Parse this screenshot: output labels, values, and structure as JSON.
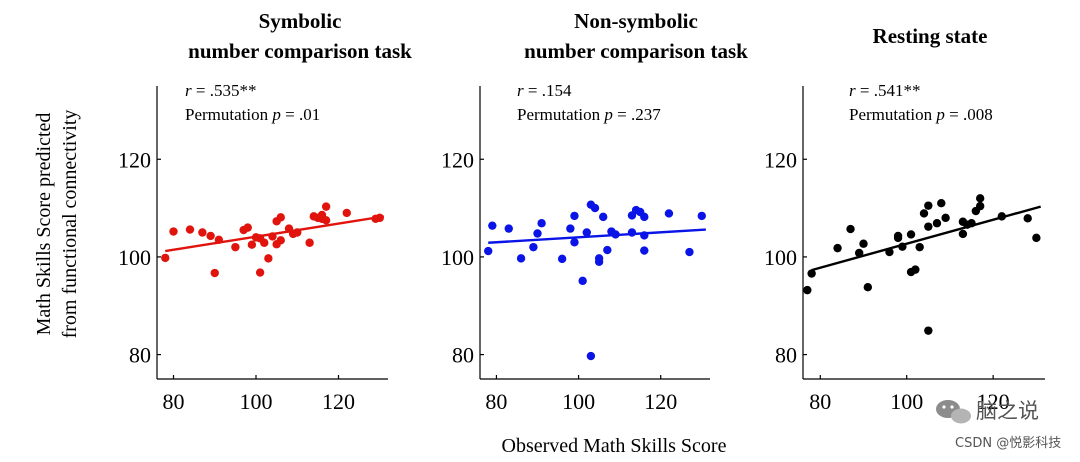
{
  "chart_data": [
    {
      "type": "scatter",
      "title": [
        "Symbolic",
        "number comparison task"
      ],
      "stat_r_italic": "r",
      "stat_r_value": " = .535**",
      "stat_p_prefix": "Permutation ",
      "stat_p_italic": "p",
      "stat_p_value": " = .01",
      "color": "#e0140c",
      "xlim": [
        76,
        132
      ],
      "ylim": [
        75,
        135
      ],
      "xticks": [
        "80",
        "100",
        "120"
      ],
      "yticks": [
        "80",
        "100",
        "120"
      ],
      "fit": {
        "x": [
          78,
          131
        ],
        "y": [
          101.2,
          108.3
        ]
      },
      "points": [
        {
          "x": 78,
          "y": 99.8
        },
        {
          "x": 80,
          "y": 105.2
        },
        {
          "x": 84,
          "y": 105.6
        },
        {
          "x": 87,
          "y": 105.0
        },
        {
          "x": 89,
          "y": 104.3
        },
        {
          "x": 90,
          "y": 96.7
        },
        {
          "x": 91,
          "y": 103.5
        },
        {
          "x": 95,
          "y": 102.0
        },
        {
          "x": 97,
          "y": 105.5
        },
        {
          "x": 98,
          "y": 106.0
        },
        {
          "x": 99,
          "y": 102.5
        },
        {
          "x": 100,
          "y": 104.0
        },
        {
          "x": 101,
          "y": 96.8
        },
        {
          "x": 101,
          "y": 103.8
        },
        {
          "x": 102,
          "y": 102.9
        },
        {
          "x": 103,
          "y": 99.7
        },
        {
          "x": 104,
          "y": 104.2
        },
        {
          "x": 105,
          "y": 102.6
        },
        {
          "x": 105,
          "y": 107.3
        },
        {
          "x": 106,
          "y": 108.1
        },
        {
          "x": 106,
          "y": 103.4
        },
        {
          "x": 108,
          "y": 105.8
        },
        {
          "x": 109,
          "y": 104.7
        },
        {
          "x": 110,
          "y": 105.0
        },
        {
          "x": 113,
          "y": 102.9
        },
        {
          "x": 114,
          "y": 108.3
        },
        {
          "x": 115,
          "y": 108.0
        },
        {
          "x": 116,
          "y": 107.8
        },
        {
          "x": 116,
          "y": 108.6
        },
        {
          "x": 117,
          "y": 110.3
        },
        {
          "x": 117,
          "y": 107.5
        },
        {
          "x": 122,
          "y": 109.0
        },
        {
          "x": 129,
          "y": 107.8
        },
        {
          "x": 130,
          "y": 108.0
        }
      ]
    },
    {
      "type": "scatter",
      "title": [
        "Non-symbolic",
        "number comparison task"
      ],
      "stat_r_italic": "r",
      "stat_r_value": " = .154",
      "stat_p_prefix": "Permutation ",
      "stat_p_italic": "p",
      "stat_p_value": " = .237",
      "color": "#0a14e6",
      "xlim": [
        76,
        132
      ],
      "ylim": [
        75,
        135
      ],
      "xticks": [
        "80",
        "100",
        "120"
      ],
      "yticks": [
        "80",
        "100",
        "120"
      ],
      "fit": {
        "x": [
          78,
          131
        ],
        "y": [
          102.9,
          105.6
        ]
      },
      "points": [
        {
          "x": 78,
          "y": 101.2
        },
        {
          "x": 79,
          "y": 106.4
        },
        {
          "x": 83,
          "y": 105.8
        },
        {
          "x": 86,
          "y": 99.7
        },
        {
          "x": 89,
          "y": 102.0
        },
        {
          "x": 90,
          "y": 104.8
        },
        {
          "x": 91,
          "y": 106.9
        },
        {
          "x": 96,
          "y": 99.6
        },
        {
          "x": 98,
          "y": 105.8
        },
        {
          "x": 99,
          "y": 108.4
        },
        {
          "x": 99,
          "y": 103.0
        },
        {
          "x": 101,
          "y": 95.1
        },
        {
          "x": 102,
          "y": 105.0
        },
        {
          "x": 103,
          "y": 110.7
        },
        {
          "x": 103,
          "y": 79.7
        },
        {
          "x": 104,
          "y": 110.0
        },
        {
          "x": 105,
          "y": 99.7
        },
        {
          "x": 105,
          "y": 99.0
        },
        {
          "x": 106,
          "y": 108.2
        },
        {
          "x": 107,
          "y": 101.4
        },
        {
          "x": 108,
          "y": 105.2
        },
        {
          "x": 109,
          "y": 104.6
        },
        {
          "x": 113,
          "y": 108.5
        },
        {
          "x": 113,
          "y": 105.0
        },
        {
          "x": 114,
          "y": 109.6
        },
        {
          "x": 115,
          "y": 109.2
        },
        {
          "x": 116,
          "y": 101.3
        },
        {
          "x": 116,
          "y": 108.2
        },
        {
          "x": 116,
          "y": 104.4
        },
        {
          "x": 122,
          "y": 108.9
        },
        {
          "x": 127,
          "y": 101.0
        },
        {
          "x": 130,
          "y": 108.4
        }
      ]
    },
    {
      "type": "scatter",
      "title": [
        "Resting state"
      ],
      "stat_r_italic": "r",
      "stat_r_value": " = .541**",
      "stat_p_prefix": "Permutation ",
      "stat_p_italic": "p",
      "stat_p_value": " = .008",
      "color": "#000000",
      "xlim": [
        76,
        132
      ],
      "ylim": [
        75,
        135
      ],
      "xticks": [
        "80",
        "100",
        "120"
      ],
      "yticks": [
        "80",
        "100",
        "120"
      ],
      "fit": {
        "x": [
          78,
          131
        ],
        "y": [
          97.3,
          110.3
        ]
      },
      "points": [
        {
          "x": 77,
          "y": 93.2
        },
        {
          "x": 78,
          "y": 96.6
        },
        {
          "x": 84,
          "y": 101.8
        },
        {
          "x": 87,
          "y": 105.7
        },
        {
          "x": 89,
          "y": 100.8
        },
        {
          "x": 90,
          "y": 102.7
        },
        {
          "x": 91,
          "y": 93.8
        },
        {
          "x": 96,
          "y": 101.0
        },
        {
          "x": 98,
          "y": 104.3
        },
        {
          "x": 98,
          "y": 103.9
        },
        {
          "x": 99,
          "y": 102.1
        },
        {
          "x": 101,
          "y": 104.6
        },
        {
          "x": 101,
          "y": 96.9
        },
        {
          "x": 102,
          "y": 97.4
        },
        {
          "x": 103,
          "y": 102.0
        },
        {
          "x": 104,
          "y": 108.9
        },
        {
          "x": 105,
          "y": 110.5
        },
        {
          "x": 105,
          "y": 84.9
        },
        {
          "x": 105,
          "y": 106.2
        },
        {
          "x": 107,
          "y": 106.9
        },
        {
          "x": 108,
          "y": 111.0
        },
        {
          "x": 109,
          "y": 108.0
        },
        {
          "x": 113,
          "y": 104.7
        },
        {
          "x": 113,
          "y": 107.2
        },
        {
          "x": 114,
          "y": 106.6
        },
        {
          "x": 115,
          "y": 106.9
        },
        {
          "x": 116,
          "y": 109.4
        },
        {
          "x": 117,
          "y": 112.0
        },
        {
          "x": 117,
          "y": 110.4
        },
        {
          "x": 122,
          "y": 108.3
        },
        {
          "x": 128,
          "y": 107.9
        },
        {
          "x": 130,
          "y": 103.9
        }
      ]
    }
  ],
  "ylabel_line1": "Math Skills Score predicted",
  "ylabel_line2": "from functional connectivity",
  "xlabel": "Observed Math Skills Score",
  "watermark": {
    "brand": "脑之说",
    "credit": "CSDN @悦影科技"
  }
}
